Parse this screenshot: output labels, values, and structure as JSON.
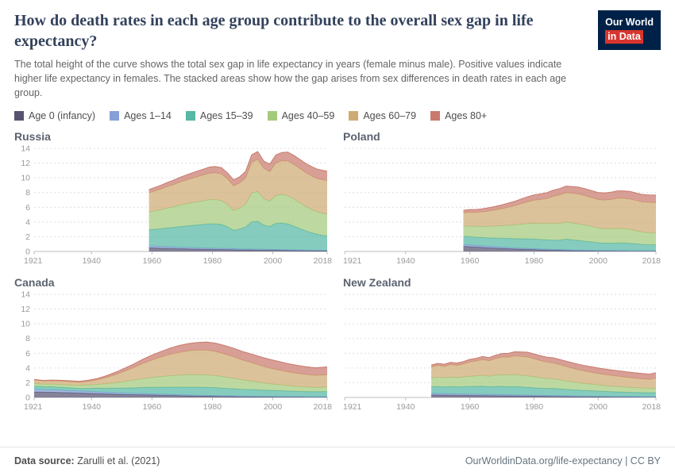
{
  "header": {
    "title": "How do death rates in each age group contribute to the overall sex gap in life expectancy?",
    "subtitle": "The total height of the curve shows the total sex gap in life expectancy in years (female minus male). Positive values indicate higher life expectancy in females. The stacked areas show how the gap arises from sex differences in death rates in each age group.",
    "logo": {
      "line1": "Our World",
      "line2": "in Data",
      "bg": "#002147",
      "accent": "#d8352f"
    }
  },
  "footer": {
    "source_label": "Data source:",
    "source_value": " Zarulli et al. (2021)",
    "credit": "OurWorldinData.org/life-expectancy | CC BY"
  },
  "chart_data": {
    "type": "area",
    "stacked": true,
    "xlim": [
      1921,
      2018
    ],
    "ylim": [
      0,
      14
    ],
    "x_ticks": [
      1921,
      1940,
      1960,
      1980,
      2000,
      2018
    ],
    "y_ticks": [
      0,
      2,
      4,
      6,
      8,
      10,
      12,
      14
    ],
    "grid": true,
    "legend_position": "top",
    "series_names": [
      "Age 0 (infancy)",
      "Ages 1–14",
      "Ages 15–39",
      "Ages 40–59",
      "Ages 60–79",
      "Ages 80+"
    ],
    "series_colors": [
      "#575370",
      "#85a0d6",
      "#56b8a5",
      "#a4cb7d",
      "#cfab74",
      "#c97a6d"
    ],
    "units": "years of life expectancy gap (female minus male)",
    "charts": [
      {
        "title": "Russia",
        "show_y_labels": true,
        "years": [
          1959,
          1961,
          1963,
          1965,
          1967,
          1969,
          1971,
          1973,
          1975,
          1977,
          1979,
          1981,
          1983,
          1985,
          1987,
          1989,
          1991,
          1993,
          1995,
          1997,
          1999,
          2001,
          2003,
          2005,
          2007,
          2009,
          2011,
          2013,
          2015,
          2017,
          2018
        ],
        "series": [
          [
            0.5,
            0.48,
            0.45,
            0.43,
            0.4,
            0.38,
            0.36,
            0.34,
            0.33,
            0.31,
            0.3,
            0.28,
            0.27,
            0.26,
            0.24,
            0.22,
            0.21,
            0.2,
            0.19,
            0.18,
            0.17,
            0.16,
            0.15,
            0.14,
            0.13,
            0.12,
            0.12,
            0.11,
            0.1,
            0.1,
            0.1
          ],
          [
            0.25,
            0.24,
            0.23,
            0.22,
            0.21,
            0.2,
            0.19,
            0.18,
            0.17,
            0.17,
            0.16,
            0.15,
            0.15,
            0.14,
            0.13,
            0.12,
            0.12,
            0.12,
            0.12,
            0.11,
            0.11,
            0.1,
            0.1,
            0.1,
            0.09,
            0.08,
            0.07,
            0.07,
            0.06,
            0.06,
            0.06
          ],
          [
            2.2,
            2.3,
            2.4,
            2.55,
            2.65,
            2.8,
            2.9,
            3.0,
            3.1,
            3.2,
            3.3,
            3.32,
            3.25,
            2.95,
            2.5,
            2.7,
            3.0,
            3.7,
            3.8,
            3.3,
            3.1,
            3.55,
            3.6,
            3.5,
            3.2,
            2.9,
            2.6,
            2.35,
            2.15,
            2.0,
            1.95
          ],
          [
            2.4,
            2.5,
            2.6,
            2.7,
            2.8,
            2.9,
            3.0,
            3.08,
            3.15,
            3.2,
            3.28,
            3.3,
            3.25,
            3.05,
            2.7,
            2.85,
            3.1,
            3.9,
            4.05,
            3.6,
            3.45,
            3.8,
            3.9,
            3.85,
            3.7,
            3.5,
            3.3,
            3.15,
            3.05,
            3.0,
            2.95
          ],
          [
            2.6,
            2.7,
            2.8,
            2.9,
            3.0,
            3.1,
            3.2,
            3.3,
            3.4,
            3.5,
            3.58,
            3.62,
            3.6,
            3.45,
            3.35,
            3.4,
            3.55,
            4.2,
            4.35,
            4.1,
            4.0,
            4.4,
            4.55,
            4.7,
            4.7,
            4.65,
            4.6,
            4.55,
            4.5,
            4.55,
            4.55
          ],
          [
            0.45,
            0.48,
            0.52,
            0.56,
            0.6,
            0.64,
            0.68,
            0.72,
            0.76,
            0.8,
            0.84,
            0.86,
            0.86,
            0.82,
            0.8,
            0.84,
            0.9,
            1.0,
            1.05,
            1.0,
            1.02,
            1.08,
            1.14,
            1.2,
            1.22,
            1.24,
            1.25,
            1.26,
            1.27,
            1.28,
            1.28
          ]
        ]
      },
      {
        "title": "Poland",
        "show_y_labels": false,
        "years": [
          1958,
          1960,
          1962,
          1964,
          1966,
          1968,
          1970,
          1972,
          1974,
          1976,
          1978,
          1980,
          1982,
          1984,
          1986,
          1988,
          1990,
          1992,
          1994,
          1996,
          1998,
          2000,
          2002,
          2004,
          2006,
          2008,
          2010,
          2012,
          2014,
          2016,
          2018
        ],
        "series": [
          [
            0.7,
            0.66,
            0.6,
            0.55,
            0.5,
            0.46,
            0.42,
            0.38,
            0.34,
            0.31,
            0.28,
            0.25,
            0.22,
            0.2,
            0.18,
            0.16,
            0.14,
            0.12,
            0.11,
            0.1,
            0.09,
            0.08,
            0.07,
            0.07,
            0.06,
            0.06,
            0.05,
            0.05,
            0.05,
            0.05,
            0.05
          ],
          [
            0.25,
            0.24,
            0.22,
            0.21,
            0.19,
            0.18,
            0.17,
            0.16,
            0.15,
            0.14,
            0.13,
            0.12,
            0.11,
            0.11,
            0.1,
            0.09,
            0.09,
            0.08,
            0.08,
            0.07,
            0.07,
            0.06,
            0.06,
            0.06,
            0.05,
            0.05,
            0.05,
            0.05,
            0.05,
            0.05,
            0.05
          ],
          [
            1.1,
            1.12,
            1.1,
            1.12,
            1.15,
            1.18,
            1.2,
            1.22,
            1.25,
            1.28,
            1.3,
            1.32,
            1.3,
            1.28,
            1.26,
            1.3,
            1.45,
            1.38,
            1.3,
            1.22,
            1.15,
            1.05,
            1.0,
            1.0,
            1.05,
            1.05,
            1.0,
            0.92,
            0.85,
            0.82,
            0.8
          ],
          [
            1.4,
            1.45,
            1.48,
            1.52,
            1.58,
            1.64,
            1.72,
            1.8,
            1.88,
            1.98,
            2.08,
            2.15,
            2.18,
            2.22,
            2.25,
            2.28,
            2.3,
            2.28,
            2.25,
            2.18,
            2.1,
            2.0,
            1.95,
            1.95,
            2.0,
            1.95,
            1.9,
            1.78,
            1.68,
            1.62,
            1.58
          ],
          [
            1.8,
            1.85,
            1.9,
            1.98,
            2.08,
            2.18,
            2.3,
            2.45,
            2.6,
            2.78,
            2.95,
            3.12,
            3.25,
            3.38,
            3.7,
            3.85,
            4.0,
            4.05,
            4.05,
            4.0,
            3.9,
            3.85,
            3.9,
            3.98,
            4.05,
            4.1,
            4.12,
            4.1,
            4.08,
            4.12,
            4.15
          ],
          [
            0.35,
            0.37,
            0.39,
            0.42,
            0.45,
            0.48,
            0.52,
            0.56,
            0.6,
            0.64,
            0.68,
            0.72,
            0.76,
            0.8,
            0.83,
            0.86,
            0.89,
            0.91,
            0.93,
            0.94,
            0.95,
            0.96,
            0.97,
            0.99,
            1.01,
            1.02,
            1.03,
            1.02,
            1.01,
            1.02,
            1.03
          ]
        ]
      },
      {
        "title": "Canada",
        "show_y_labels": true,
        "years": [
          1921,
          1924,
          1927,
          1930,
          1933,
          1936,
          1939,
          1942,
          1945,
          1948,
          1951,
          1954,
          1957,
          1960,
          1963,
          1966,
          1969,
          1972,
          1975,
          1978,
          1981,
          1984,
          1987,
          1990,
          1993,
          1996,
          1999,
          2002,
          2005,
          2008,
          2011,
          2014,
          2018
        ],
        "series": [
          [
            0.75,
            0.72,
            0.7,
            0.68,
            0.64,
            0.6,
            0.56,
            0.52,
            0.48,
            0.44,
            0.4,
            0.38,
            0.36,
            0.34,
            0.3,
            0.27,
            0.24,
            0.21,
            0.19,
            0.17,
            0.15,
            0.13,
            0.12,
            0.1,
            0.09,
            0.08,
            0.08,
            0.07,
            0.06,
            0.06,
            0.05,
            0.05,
            0.05
          ],
          [
            0.35,
            0.33,
            0.32,
            0.3,
            0.28,
            0.27,
            0.25,
            0.24,
            0.22,
            0.2,
            0.18,
            0.17,
            0.16,
            0.15,
            0.14,
            0.13,
            0.12,
            0.11,
            0.11,
            0.1,
            0.1,
            0.09,
            0.09,
            0.08,
            0.08,
            0.07,
            0.07,
            0.06,
            0.06,
            0.06,
            0.05,
            0.05,
            0.05
          ],
          [
            0.45,
            0.42,
            0.44,
            0.4,
            0.38,
            0.36,
            0.42,
            0.5,
            0.55,
            0.62,
            0.7,
            0.76,
            0.84,
            0.9,
            0.95,
            1.0,
            1.05,
            1.08,
            1.1,
            1.1,
            1.08,
            1.02,
            0.98,
            0.92,
            0.9,
            0.86,
            0.82,
            0.8,
            0.76,
            0.72,
            0.7,
            0.68,
            0.7
          ],
          [
            0.35,
            0.34,
            0.36,
            0.38,
            0.4,
            0.42,
            0.46,
            0.52,
            0.62,
            0.75,
            0.9,
            1.05,
            1.2,
            1.32,
            1.45,
            1.55,
            1.62,
            1.68,
            1.7,
            1.7,
            1.65,
            1.55,
            1.42,
            1.28,
            1.15,
            1.02,
            0.9,
            0.82,
            0.74,
            0.68,
            0.62,
            0.58,
            0.6
          ],
          [
            0.45,
            0.42,
            0.44,
            0.46,
            0.44,
            0.42,
            0.5,
            0.62,
            0.85,
            1.1,
            1.4,
            1.7,
            2.05,
            2.38,
            2.65,
            2.9,
            3.1,
            3.25,
            3.32,
            3.35,
            3.28,
            3.12,
            2.92,
            2.7,
            2.5,
            2.3,
            2.12,
            1.98,
            1.85,
            1.76,
            1.7,
            1.64,
            1.7
          ],
          [
            0.1,
            0.09,
            0.1,
            0.11,
            0.12,
            0.13,
            0.15,
            0.18,
            0.24,
            0.32,
            0.4,
            0.48,
            0.58,
            0.66,
            0.75,
            0.84,
            0.92,
            0.98,
            1.04,
            1.1,
            1.12,
            1.14,
            1.15,
            1.16,
            1.17,
            1.18,
            1.18,
            1.16,
            1.12,
            1.08,
            1.05,
            1.02,
            1.05
          ]
        ]
      },
      {
        "title": "New Zealand",
        "show_y_labels": false,
        "years": [
          1948,
          1950,
          1952,
          1954,
          1956,
          1958,
          1960,
          1962,
          1964,
          1966,
          1968,
          1970,
          1972,
          1974,
          1976,
          1978,
          1980,
          1982,
          1984,
          1986,
          1988,
          1990,
          1992,
          1994,
          1996,
          1998,
          2000,
          2002,
          2004,
          2006,
          2008,
          2010,
          2012,
          2014,
          2016,
          2018
        ],
        "series": [
          [
            0.35,
            0.34,
            0.32,
            0.31,
            0.3,
            0.28,
            0.27,
            0.26,
            0.25,
            0.24,
            0.23,
            0.22,
            0.21,
            0.2,
            0.19,
            0.18,
            0.17,
            0.16,
            0.15,
            0.14,
            0.13,
            0.12,
            0.11,
            0.1,
            0.1,
            0.09,
            0.08,
            0.08,
            0.07,
            0.07,
            0.06,
            0.06,
            0.06,
            0.05,
            0.05,
            0.05
          ],
          [
            0.2,
            0.2,
            0.19,
            0.19,
            0.18,
            0.18,
            0.17,
            0.17,
            0.16,
            0.16,
            0.15,
            0.15,
            0.14,
            0.14,
            0.13,
            0.13,
            0.12,
            0.12,
            0.11,
            0.11,
            0.1,
            0.1,
            0.09,
            0.09,
            0.08,
            0.08,
            0.08,
            0.07,
            0.07,
            0.07,
            0.06,
            0.06,
            0.06,
            0.05,
            0.05,
            0.05
          ],
          [
            0.9,
            0.96,
            0.92,
            0.98,
            0.95,
            1.0,
            1.05,
            1.08,
            1.12,
            1.06,
            1.12,
            1.15,
            1.1,
            1.14,
            1.1,
            1.06,
            1.02,
            0.98,
            0.96,
            0.98,
            0.94,
            0.88,
            0.84,
            0.8,
            0.76,
            0.74,
            0.7,
            0.67,
            0.64,
            0.62,
            0.6,
            0.58,
            0.56,
            0.55,
            0.55,
            0.54
          ],
          [
            1.2,
            1.26,
            1.22,
            1.3,
            1.27,
            1.33,
            1.38,
            1.42,
            1.48,
            1.44,
            1.52,
            1.58,
            1.6,
            1.64,
            1.6,
            1.56,
            1.5,
            1.42,
            1.35,
            1.3,
            1.23,
            1.16,
            1.08,
            1.0,
            0.95,
            0.9,
            0.85,
            0.8,
            0.76,
            0.72,
            0.7,
            0.66,
            0.64,
            0.62,
            0.6,
            0.58
          ],
          [
            1.5,
            1.6,
            1.58,
            1.68,
            1.66,
            1.76,
            1.95,
            2.02,
            2.15,
            2.08,
            2.25,
            2.38,
            2.42,
            2.52,
            2.56,
            2.58,
            2.45,
            2.32,
            2.22,
            2.15,
            2.05,
            1.95,
            1.85,
            1.76,
            1.68,
            1.6,
            1.54,
            1.5,
            1.46,
            1.42,
            1.38,
            1.33,
            1.28,
            1.25,
            1.2,
            1.42
          ],
          [
            0.25,
            0.27,
            0.28,
            0.3,
            0.31,
            0.33,
            0.35,
            0.37,
            0.4,
            0.42,
            0.45,
            0.48,
            0.52,
            0.56,
            0.6,
            0.63,
            0.65,
            0.67,
            0.68,
            0.7,
            0.71,
            0.72,
            0.73,
            0.74,
            0.74,
            0.75,
            0.75,
            0.75,
            0.74,
            0.74,
            0.73,
            0.73,
            0.72,
            0.72,
            0.71,
            0.72
          ]
        ]
      }
    ]
  }
}
